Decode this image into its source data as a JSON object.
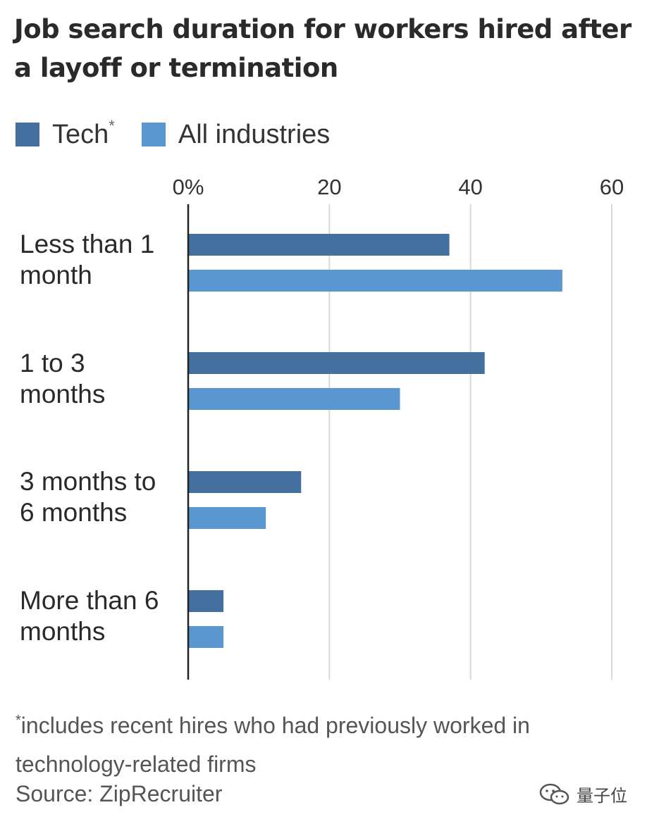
{
  "title": "Job search duration for workers hired after a layoff or termination",
  "legend": {
    "tech": {
      "label": "Tech",
      "asterisk": "*",
      "color": "#44709f"
    },
    "all": {
      "label": "All industries",
      "color": "#5a97d1"
    }
  },
  "chart_data": {
    "type": "bar",
    "orientation": "horizontal",
    "title": "Job search duration for workers hired after a layoff or termination",
    "xlabel": "",
    "ylabel": "",
    "xlim": [
      0,
      60
    ],
    "x_ticks": [
      "0%",
      "20",
      "40",
      "60"
    ],
    "x_tick_values": [
      0,
      20,
      40,
      60
    ],
    "categories": [
      "Less than 1 month",
      "1 to 3 months",
      "3 months to 6 months",
      "More than 6 months"
    ],
    "category_lines": [
      [
        "Less than 1",
        "month"
      ],
      [
        "1 to 3",
        "months"
      ],
      [
        "3 months to",
        "6 months"
      ],
      [
        "More than 6",
        "months"
      ]
    ],
    "series": [
      {
        "name": "Tech*",
        "color": "#44709f",
        "values": [
          37,
          42,
          16,
          5
        ]
      },
      {
        "name": "All industries",
        "color": "#5a97d1",
        "values": [
          53,
          30,
          11,
          5
        ]
      }
    ],
    "grid": true,
    "legend_position": "top-left"
  },
  "footnote": {
    "star": "*",
    "text": "includes recent hires who had previously worked in technology-related firms"
  },
  "source": "Source: ZipRecruiter",
  "watermark": {
    "text": "量子位",
    "icon": "wechat-icon"
  }
}
